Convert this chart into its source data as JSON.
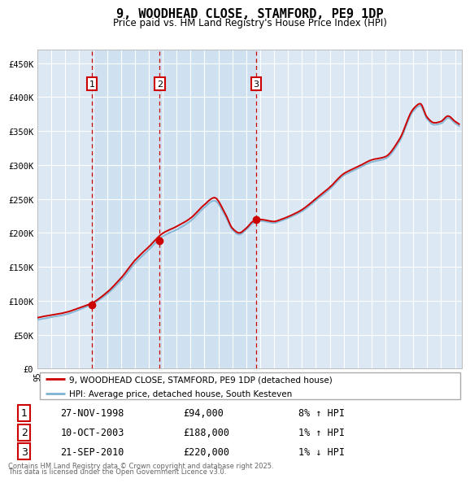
{
  "title": "9, WOODHEAD CLOSE, STAMFORD, PE9 1DP",
  "subtitle": "Price paid vs. HM Land Registry's House Price Index (HPI)",
  "bg_color": "#dce9f5",
  "grid_color": "#ffffff",
  "line_color_red": "#cc0000",
  "line_color_blue": "#7fb3d3",
  "sale_marker_color": "#cc0000",
  "dashed_vline_color": "#cc0000",
  "sale_shade_color": "#c8ddf0",
  "ylim": [
    0,
    470000
  ],
  "yticks": [
    0,
    50000,
    100000,
    150000,
    200000,
    250000,
    300000,
    350000,
    400000,
    450000
  ],
  "ytick_labels": [
    "£0",
    "£50K",
    "£100K",
    "£150K",
    "£200K",
    "£250K",
    "£300K",
    "£350K",
    "£400K",
    "£450K"
  ],
  "xlim_start": 1995,
  "xlim_end": 2025.5,
  "sales": [
    {
      "label": "1",
      "date": "27-NOV-1998",
      "price": 94000,
      "pct": "8%",
      "dir": "↑",
      "x_year": 1998.92
    },
    {
      "label": "2",
      "date": "10-OCT-2003",
      "price": 188000,
      "pct": "1%",
      "dir": "↑",
      "x_year": 2003.78
    },
    {
      "label": "3",
      "date": "21-SEP-2010",
      "price": 220000,
      "pct": "1%",
      "dir": "↓",
      "x_year": 2010.72
    }
  ],
  "legend_line1": "9, WOODHEAD CLOSE, STAMFORD, PE9 1DP (detached house)",
  "legend_line2": "HPI: Average price, detached house, South Kesteven",
  "table_rows": [
    [
      "1",
      "27-NOV-1998",
      "£94,000",
      "8% ↑ HPI"
    ],
    [
      "2",
      "10-OCT-2003",
      "£188,000",
      "1% ↑ HPI"
    ],
    [
      "3",
      "21-SEP-2010",
      "£220,000",
      "1% ↓ HPI"
    ]
  ],
  "footer1": "Contains HM Land Registry data © Crown copyright and database right 2025.",
  "footer2": "This data is licensed under the Open Government Licence v3.0."
}
